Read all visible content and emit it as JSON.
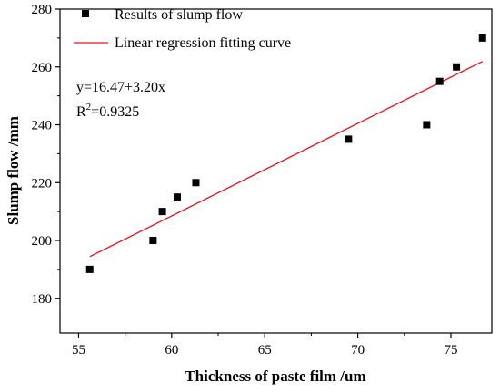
{
  "chart_data": {
    "type": "scatter",
    "xlabel": "Thickness of paste film /um",
    "ylabel": "Slump flow /mm",
    "xlim": [
      54,
      77.2
    ],
    "ylim": [
      168,
      280
    ],
    "xticks": [
      55,
      60,
      65,
      70,
      75
    ],
    "yticks": [
      180,
      200,
      220,
      240,
      260,
      280
    ],
    "grid": false,
    "legend_position": "top-left",
    "series": [
      {
        "name": "Results of slump flow",
        "type": "scatter",
        "marker": "square",
        "color": "#000000",
        "x": [
          55.6,
          59.0,
          59.5,
          60.3,
          61.3,
          69.5,
          73.7,
          74.4,
          75.3,
          76.7
        ],
        "y": [
          190,
          200,
          210,
          215,
          220,
          235,
          240,
          255,
          260,
          270
        ]
      },
      {
        "name": "Linear regression fitting curve",
        "type": "line",
        "color": "#e8141b",
        "x": [
          55.6,
          76.7
        ],
        "y": [
          194.4,
          261.9
        ]
      }
    ],
    "annotations": {
      "equation": "y=16.47+3.20x",
      "r2_prefix": "R",
      "r2_sup": "2",
      "r2_value": "=0.9325"
    }
  }
}
